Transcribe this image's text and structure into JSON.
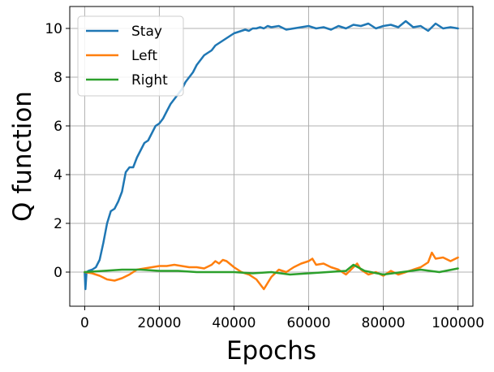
{
  "chart_data": {
    "type": "line",
    "title": "",
    "xlabel": "Epochs",
    "ylabel": "Q function",
    "xlim": [
      -4000,
      104000
    ],
    "ylim": [
      -1.4,
      10.9
    ],
    "xticks": [
      0,
      20000,
      40000,
      60000,
      80000,
      100000
    ],
    "xtick_labels": [
      "0",
      "20000",
      "40000",
      "60000",
      "80000",
      "100000"
    ],
    "yticks": [
      0,
      2,
      4,
      6,
      8,
      10
    ],
    "ytick_labels": [
      "0",
      "2",
      "4",
      "6",
      "8",
      "10"
    ],
    "grid": true,
    "legend_position": "upper-left",
    "series": [
      {
        "name": "Stay",
        "color": "#1f77b4",
        "x": [
          0,
          200,
          500,
          1000,
          2000,
          3000,
          4000,
          5000,
          6000,
          7000,
          8000,
          9000,
          10000,
          11000,
          12000,
          13000,
          14000,
          15000,
          16000,
          17000,
          18000,
          19000,
          20000,
          21000,
          22000,
          23000,
          24000,
          25000,
          26000,
          27000,
          28000,
          29000,
          30000,
          31000,
          32000,
          33000,
          34000,
          35000,
          36000,
          37000,
          38000,
          39000,
          40000,
          41000,
          42000,
          43000,
          44000,
          45000,
          46000,
          47000,
          48000,
          49000,
          50000,
          52000,
          54000,
          56000,
          58000,
          60000,
          62000,
          64000,
          66000,
          68000,
          70000,
          72000,
          74000,
          76000,
          78000,
          80000,
          82000,
          84000,
          86000,
          88000,
          90000,
          92000,
          94000,
          96000,
          98000,
          100000
        ],
        "y": [
          0.0,
          -0.7,
          0.0,
          0.05,
          0.1,
          0.2,
          0.5,
          1.2,
          2.0,
          2.5,
          2.6,
          2.9,
          3.3,
          4.1,
          4.3,
          4.3,
          4.7,
          5.0,
          5.3,
          5.4,
          5.7,
          6.0,
          6.1,
          6.3,
          6.6,
          6.9,
          7.1,
          7.3,
          7.5,
          7.8,
          8.0,
          8.2,
          8.5,
          8.7,
          8.9,
          9.0,
          9.1,
          9.3,
          9.4,
          9.5,
          9.6,
          9.7,
          9.8,
          9.85,
          9.9,
          9.95,
          9.9,
          10.0,
          10.0,
          10.05,
          10.0,
          10.1,
          10.05,
          10.1,
          9.95,
          10.0,
          10.05,
          10.1,
          10.0,
          10.05,
          9.95,
          10.1,
          10.0,
          10.15,
          10.1,
          10.2,
          10.0,
          10.1,
          10.15,
          10.05,
          10.3,
          10.05,
          10.1,
          9.9,
          10.2,
          10.0,
          10.05,
          10.0
        ]
      },
      {
        "name": "Left",
        "color": "#ff7f0e",
        "x": [
          0,
          2000,
          4000,
          6000,
          8000,
          10000,
          12000,
          14000,
          16000,
          18000,
          20000,
          22000,
          24000,
          26000,
          28000,
          30000,
          32000,
          34000,
          35000,
          36000,
          37000,
          38000,
          40000,
          42000,
          44000,
          46000,
          47000,
          48000,
          50000,
          52000,
          54000,
          56000,
          58000,
          60000,
          61000,
          62000,
          64000,
          66000,
          68000,
          70000,
          72000,
          73000,
          74000,
          76000,
          78000,
          80000,
          82000,
          84000,
          86000,
          88000,
          90000,
          92000,
          93000,
          94000,
          96000,
          98000,
          100000
        ],
        "y": [
          0.0,
          -0.05,
          -0.15,
          -0.3,
          -0.35,
          -0.25,
          -0.1,
          0.1,
          0.15,
          0.2,
          0.25,
          0.25,
          0.3,
          0.25,
          0.2,
          0.2,
          0.15,
          0.3,
          0.45,
          0.35,
          0.5,
          0.45,
          0.2,
          0.0,
          -0.1,
          -0.3,
          -0.5,
          -0.7,
          -0.2,
          0.1,
          0.0,
          0.2,
          0.35,
          0.45,
          0.55,
          0.3,
          0.35,
          0.2,
          0.1,
          -0.1,
          0.2,
          0.35,
          0.1,
          -0.1,
          0.0,
          -0.15,
          0.05,
          -0.1,
          0.0,
          0.1,
          0.2,
          0.4,
          0.8,
          0.55,
          0.6,
          0.45,
          0.6
        ]
      },
      {
        "name": "Right",
        "color": "#2ca02c",
        "x": [
          0,
          5000,
          10000,
          15000,
          20000,
          25000,
          30000,
          35000,
          40000,
          45000,
          50000,
          55000,
          60000,
          65000,
          70000,
          72000,
          75000,
          80000,
          85000,
          90000,
          95000,
          100000
        ],
        "y": [
          0.0,
          0.05,
          0.1,
          0.1,
          0.05,
          0.05,
          0.0,
          0.0,
          0.0,
          -0.05,
          0.0,
          -0.1,
          -0.05,
          0.0,
          0.05,
          0.3,
          0.05,
          -0.1,
          0.0,
          0.1,
          0.0,
          0.15
        ]
      }
    ]
  }
}
